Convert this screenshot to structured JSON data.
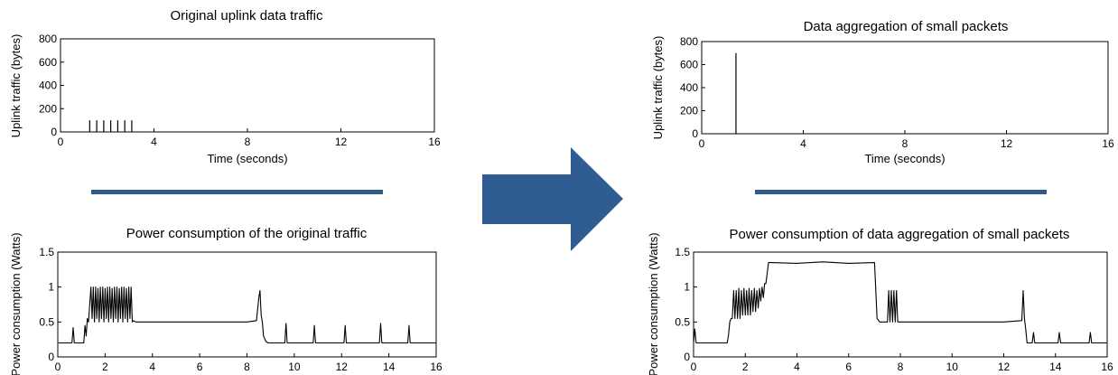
{
  "colors": {
    "separator": "#2e5a8c",
    "arrow": "#2f5d93",
    "plot": "#000000"
  },
  "icons": {
    "arrow": "right-arrow-icon"
  },
  "chart_data": [
    {
      "id": "c1",
      "type": "bar",
      "title": "Original uplink data traffic",
      "xlabel": "Time (seconds)",
      "ylabel": "Uplink traffic (bytes)",
      "xlim": [
        0,
        16
      ],
      "ylim": [
        0,
        800
      ],
      "xticks": [
        0,
        4,
        8,
        12,
        16
      ],
      "yticks": [
        0,
        200,
        400,
        600,
        800
      ],
      "series": [
        {
          "x": [
            1.25,
            1.55,
            1.85,
            2.15,
            2.45,
            2.75,
            3.05
          ],
          "y": [
            100,
            100,
            100,
            100,
            100,
            100,
            100
          ]
        }
      ]
    },
    {
      "id": "c2",
      "type": "bar",
      "title": "Data aggregation of small packets",
      "xlabel": "Time (seconds)",
      "ylabel": "Uplink traffic (bytes)",
      "xlim": [
        0,
        16
      ],
      "ylim": [
        0,
        800
      ],
      "xticks": [
        0,
        4,
        8,
        12,
        16
      ],
      "yticks": [
        0,
        200,
        400,
        600,
        800
      ],
      "series": [
        {
          "x": [
            1.35
          ],
          "y": [
            700
          ]
        }
      ]
    },
    {
      "id": "c3",
      "type": "line",
      "title": "Power consumption of the original traffic",
      "xlabel": "",
      "ylabel": "Power consumption (Watts)",
      "xlim": [
        0,
        16
      ],
      "ylim": [
        0,
        1.5
      ],
      "xticks": [
        0,
        2,
        4,
        6,
        8,
        10,
        12,
        14,
        16
      ],
      "yticks": [
        0,
        0.5,
        1,
        1.5
      ],
      "series": [
        {
          "x": [
            0,
            0.6,
            0.65,
            0.7,
            0.8,
            1.1,
            1.15,
            1.2,
            1.25,
            1.3,
            1.4,
            1.45,
            1.5,
            1.55,
            1.6,
            1.65,
            1.7,
            1.75,
            1.8,
            1.85,
            1.9,
            1.95,
            2.0,
            2.05,
            2.1,
            2.15,
            2.2,
            2.25,
            2.3,
            2.35,
            2.4,
            2.45,
            2.5,
            2.55,
            2.6,
            2.65,
            2.7,
            2.75,
            2.8,
            2.85,
            2.9,
            2.95,
            3.0,
            3.05,
            3.1,
            3.15,
            3.2,
            3.3,
            4,
            5,
            6,
            7,
            8,
            8.4,
            8.5,
            8.55,
            8.6,
            8.65,
            8.7,
            8.8,
            8.9,
            9.0,
            9.6,
            9.65,
            9.7,
            9.75,
            9.8,
            10.8,
            10.85,
            10.9,
            10.95,
            11.0,
            12.1,
            12.15,
            12.2,
            12.25,
            12.3,
            13.6,
            13.65,
            13.7,
            13.75,
            13.8,
            14.8,
            14.85,
            14.9,
            14.95,
            15.0,
            16
          ],
          "y": [
            0.2,
            0.2,
            0.42,
            0.2,
            0.2,
            0.2,
            0.45,
            0.3,
            0.55,
            0.5,
            1.0,
            0.55,
            1.0,
            0.5,
            1.0,
            0.55,
            0.98,
            0.5,
            1.0,
            0.55,
            1.0,
            0.5,
            0.98,
            0.55,
            1.0,
            0.5,
            1.0,
            0.55,
            0.98,
            0.5,
            1.0,
            0.55,
            1.0,
            0.5,
            0.98,
            0.55,
            1.0,
            0.5,
            1.0,
            0.55,
            0.98,
            0.5,
            1.0,
            0.55,
            1.0,
            0.5,
            0.52,
            0.5,
            0.5,
            0.5,
            0.5,
            0.5,
            0.5,
            0.52,
            0.85,
            0.95,
            0.6,
            0.5,
            0.3,
            0.22,
            0.2,
            0.2,
            0.2,
            0.48,
            0.2,
            0.2,
            0.2,
            0.2,
            0.45,
            0.2,
            0.2,
            0.2,
            0.2,
            0.45,
            0.2,
            0.2,
            0.2,
            0.2,
            0.48,
            0.2,
            0.2,
            0.2,
            0.2,
            0.45,
            0.2,
            0.2,
            0.2,
            0.2
          ]
        }
      ]
    },
    {
      "id": "c4",
      "type": "line",
      "title": "Power consumption of data aggregation of small packets",
      "xlabel": "",
      "ylabel": "Power consumption (Watts)",
      "xlim": [
        0,
        16
      ],
      "ylim": [
        0,
        1.5
      ],
      "xticks": [
        0,
        2,
        4,
        6,
        8,
        10,
        12,
        14,
        16
      ],
      "yticks": [
        0,
        0.5,
        1,
        1.5
      ],
      "series": [
        {
          "x": [
            0,
            0.05,
            0.1,
            0.3,
            1.3,
            1.35,
            1.4,
            1.45,
            1.5,
            1.55,
            1.6,
            1.65,
            1.7,
            1.75,
            1.8,
            1.85,
            1.9,
            1.95,
            2.0,
            2.05,
            2.1,
            2.15,
            2.2,
            2.25,
            2.3,
            2.35,
            2.4,
            2.45,
            2.5,
            2.55,
            2.6,
            2.65,
            2.7,
            2.75,
            2.8,
            2.9,
            3.0,
            4,
            5,
            6,
            7,
            7.05,
            7.1,
            7.2,
            7.3,
            7.5,
            7.55,
            7.6,
            7.65,
            7.7,
            7.75,
            7.8,
            7.85,
            7.9,
            8,
            9,
            10,
            11,
            12,
            12.7,
            12.75,
            12.8,
            12.85,
            12.9,
            13.1,
            13.15,
            13.2,
            13.3,
            14.1,
            14.15,
            14.2,
            15.3,
            15.35,
            15.4,
            16
          ],
          "y": [
            0.2,
            0.4,
            0.2,
            0.2,
            0.2,
            0.3,
            0.5,
            0.55,
            0.55,
            0.95,
            0.55,
            0.95,
            0.55,
            0.98,
            0.55,
            0.95,
            0.6,
            0.98,
            0.6,
            0.95,
            0.6,
            0.98,
            0.6,
            0.95,
            0.65,
            0.98,
            0.65,
            0.95,
            0.7,
            0.98,
            0.8,
            1.0,
            0.85,
            1.05,
            1.05,
            1.35,
            1.35,
            1.34,
            1.36,
            1.34,
            1.35,
            0.95,
            0.55,
            0.5,
            0.5,
            0.5,
            0.95,
            0.5,
            0.95,
            0.5,
            0.95,
            0.5,
            0.95,
            0.5,
            0.5,
            0.5,
            0.5,
            0.5,
            0.5,
            0.52,
            0.95,
            0.55,
            0.4,
            0.2,
            0.2,
            0.35,
            0.2,
            0.2,
            0.2,
            0.35,
            0.2,
            0.2,
            0.35,
            0.2,
            0.2
          ]
        }
      ]
    }
  ]
}
